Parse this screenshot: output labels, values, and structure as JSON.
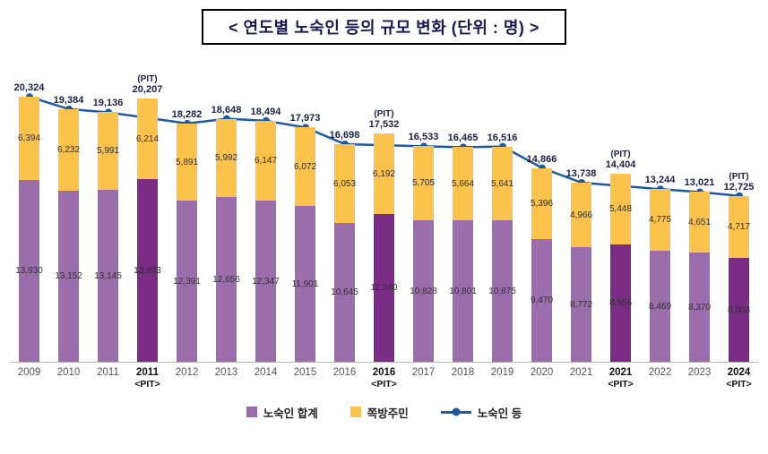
{
  "title": "< 연도별 노숙인 등의 규모 변화 (단위 : 명) >",
  "legend": {
    "items": [
      {
        "label": "노숙인 합계",
        "swatch": "square",
        "color": "#9b6dac"
      },
      {
        "label": "쪽방주민",
        "swatch": "square",
        "color": "#fbc34b"
      },
      {
        "label": "노숙인 등",
        "swatch": "line-dot",
        "color": "#1e5aa0"
      }
    ]
  },
  "colors": {
    "bar_homeless": "#9b6dac",
    "bar_homeless_pit": "#7b2c85",
    "bar_jjokbang": "#fbc34b",
    "line": "#1e5aa0",
    "total_label": "#1b2040",
    "segment_label": "#2f2f2f",
    "axis_label": "#555555",
    "axis_label_pit": "#111111"
  },
  "chart_data": {
    "type": "bar",
    "subtype": "stacked-bars-with-line-overlay",
    "title": "< 연도별 노숙인 등의 규모 변화 (단위 : 명) >",
    "unit": "명",
    "categories": [
      "2009",
      "2010",
      "2011",
      "2011",
      "2012",
      "2013",
      "2014",
      "2015",
      "2016",
      "2016",
      "2017",
      "2018",
      "2019",
      "2020",
      "2021",
      "2021",
      "2022",
      "2023",
      "2024"
    ],
    "pit_indices": [
      3,
      9,
      15,
      18
    ],
    "pit_suffix": "<PIT>",
    "pit_point_label": "(PIT)",
    "series": [
      {
        "name": "노숙인 합계",
        "type": "bar-stack",
        "values": [
          13930,
          13152,
          13145,
          13993,
          12391,
          12656,
          12347,
          11901,
          10645,
          11340,
          10828,
          10801,
          10875,
          9470,
          8772,
          8956,
          8469,
          8370,
          8008
        ]
      },
      {
        "name": "쪽방주민",
        "type": "bar-stack",
        "values": [
          6394,
          6232,
          5991,
          6214,
          5891,
          5992,
          6147,
          6072,
          6053,
          6192,
          5705,
          5664,
          5641,
          5396,
          4966,
          5448,
          4775,
          4651,
          4717
        ]
      },
      {
        "name": "노숙인 등",
        "type": "line",
        "values": [
          20324,
          19384,
          19136,
          20207,
          18282,
          18648,
          18494,
          17973,
          16698,
          17532,
          16533,
          16465,
          16516,
          14866,
          13738,
          14404,
          13244,
          13021,
          12725
        ],
        "skip_point_indices": [
          3,
          9,
          15
        ]
      }
    ],
    "ylim": [
      0,
      21300
    ],
    "grid": false,
    "legend_position": "bottom"
  }
}
